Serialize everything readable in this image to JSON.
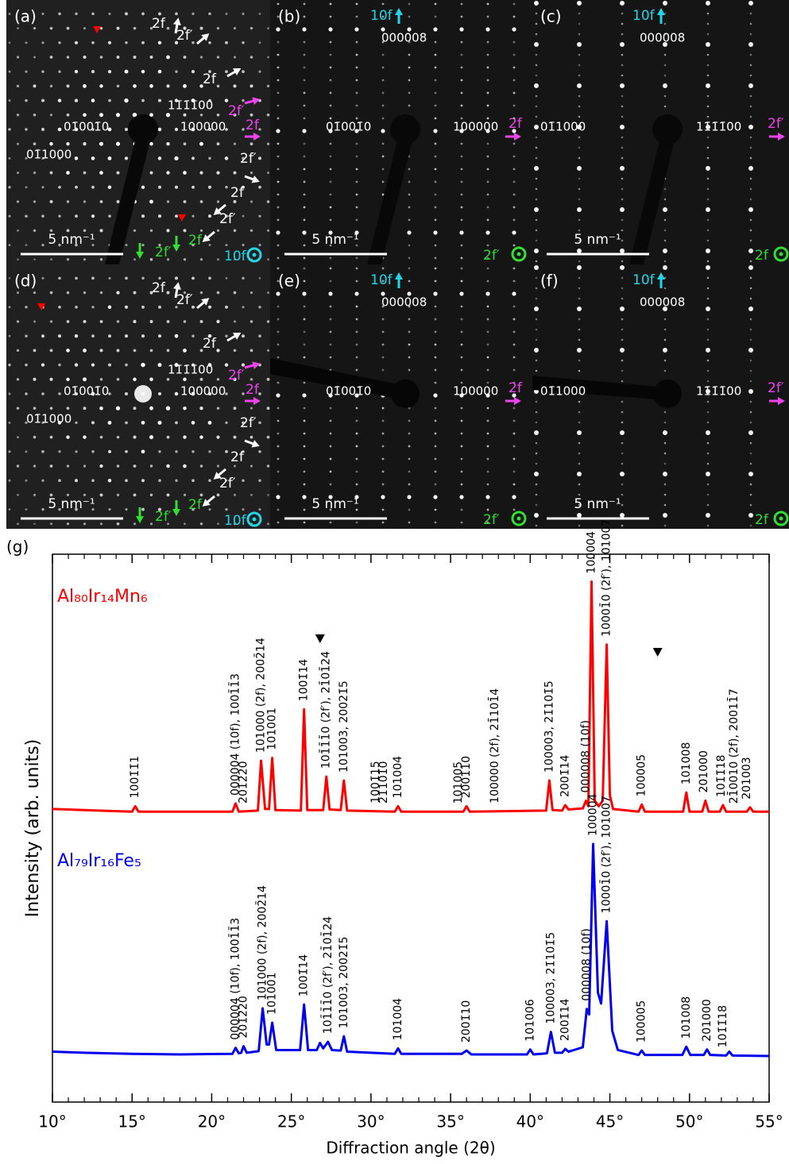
{
  "panels": [
    {
      "label": "(a)",
      "scale_bar": "5 nm⁻¹",
      "zone": {
        "text": "10f",
        "color": "#22d6e8"
      },
      "texts": [
        {
          "text": "2f",
          "color": "#ffffff"
        },
        {
          "text": "2f′",
          "color": "#ffffff"
        },
        {
          "text": "2f",
          "color": "#ffffff"
        },
        {
          "text": "2f′",
          "color": "#ee44ee"
        },
        {
          "text": "2f",
          "color": "#ee44ee"
        },
        {
          "text": "2f′",
          "color": "#ffffff"
        },
        {
          "text": "2f",
          "color": "#ffffff"
        },
        {
          "text": "2f′",
          "color": "#ffffff"
        },
        {
          "text": "2f′",
          "color": "#33dd33"
        },
        {
          "text": "2f",
          "color": "#33dd33"
        },
        {
          "text": "11̄1̄1̄00",
          "color": "#ffffff"
        },
        {
          "text": "01̄001̄0",
          "color": "#ffffff"
        },
        {
          "text": "100000",
          "color": "#ffffff"
        },
        {
          "text": "01̄1000",
          "color": "#ffffff"
        }
      ]
    },
    {
      "label": "(b)",
      "scale_bar": "5 nm⁻¹",
      "zone": {
        "text": "2f′",
        "color": "#33dd33"
      },
      "texts": [
        {
          "text": "10f",
          "color": "#22d6e8"
        },
        {
          "text": "000008",
          "color": "#ffffff"
        },
        {
          "text": "01̄001̄0",
          "color": "#ffffff"
        },
        {
          "text": "100000",
          "color": "#ffffff"
        },
        {
          "text": "2f",
          "color": "#ee44ee"
        }
      ]
    },
    {
      "label": "(c)",
      "scale_bar": "5 nm⁻¹",
      "zone": {
        "text": "2f",
        "color": "#33dd33"
      },
      "texts": [
        {
          "text": "10f",
          "color": "#22d6e8"
        },
        {
          "text": "000008",
          "color": "#ffffff"
        },
        {
          "text": "01̄1000",
          "color": "#ffffff"
        },
        {
          "text": "11̄1̄1̄00",
          "color": "#ffffff"
        },
        {
          "text": "2f′",
          "color": "#ee44ee"
        }
      ]
    },
    {
      "label": "(d)",
      "scale_bar": "5 nm⁻¹",
      "zone": {
        "text": "10f",
        "color": "#22d6e8"
      },
      "texts": [
        {
          "text": "2f",
          "color": "#ffffff"
        },
        {
          "text": "2f′",
          "color": "#ffffff"
        },
        {
          "text": "2f",
          "color": "#ffffff"
        },
        {
          "text": "2f′",
          "color": "#ee44ee"
        },
        {
          "text": "2f",
          "color": "#ee44ee"
        },
        {
          "text": "2f′",
          "color": "#ffffff"
        },
        {
          "text": "2f",
          "color": "#ffffff"
        },
        {
          "text": "2f′",
          "color": "#ffffff"
        },
        {
          "text": "2f′",
          "color": "#33dd33"
        },
        {
          "text": "2f",
          "color": "#33dd33"
        },
        {
          "text": "11̄1̄1̄00",
          "color": "#ffffff"
        },
        {
          "text": "01̄001̄0",
          "color": "#ffffff"
        },
        {
          "text": "100000",
          "color": "#ffffff"
        },
        {
          "text": "01̄1000",
          "color": "#ffffff"
        }
      ]
    },
    {
      "label": "(e)",
      "scale_bar": "5 nm⁻¹",
      "zone": {
        "text": "2f′",
        "color": "#33dd33"
      },
      "texts": [
        {
          "text": "10f",
          "color": "#22d6e8"
        },
        {
          "text": "000008",
          "color": "#ffffff"
        },
        {
          "text": "01̄001̄0",
          "color": "#ffffff"
        },
        {
          "text": "100000",
          "color": "#ffffff"
        },
        {
          "text": "2f",
          "color": "#ee44ee"
        }
      ]
    },
    {
      "label": "(f)",
      "scale_bar": "5 nm⁻¹",
      "zone": {
        "text": "2f",
        "color": "#33dd33"
      },
      "texts": [
        {
          "text": "10f",
          "color": "#22d6e8"
        },
        {
          "text": "000008",
          "color": "#ffffff"
        },
        {
          "text": "01̄1000",
          "color": "#ffffff"
        },
        {
          "text": "11̄1̄1̄00",
          "color": "#ffffff"
        },
        {
          "text": "2f′",
          "color": "#ee44ee"
        }
      ]
    }
  ],
  "chart_data": {
    "type": "line",
    "panel_label": "(g)",
    "xlabel": "Diffraction angle (2θ)",
    "ylabel": "Intensity (arb. units)",
    "xlim": [
      10,
      55
    ],
    "ylim": [
      0,
      100
    ],
    "xticks": [
      {
        "value": 10,
        "label": "10°"
      },
      {
        "value": 15,
        "label": "15°"
      },
      {
        "value": 20,
        "label": "20°"
      },
      {
        "value": 25,
        "label": "25°"
      },
      {
        "value": 30,
        "label": "30°"
      },
      {
        "value": 35,
        "label": "35°"
      },
      {
        "value": 40,
        "label": "40°"
      },
      {
        "value": 45,
        "label": "45°"
      },
      {
        "value": 50,
        "label": "50°"
      },
      {
        "value": 55,
        "label": "55°"
      }
    ],
    "xminorticks": [
      11,
      12,
      13,
      14,
      16,
      17,
      18,
      19,
      21,
      22,
      23,
      24,
      26,
      27,
      28,
      29,
      31,
      32,
      33,
      34,
      36,
      37,
      38,
      39,
      41,
      42,
      43,
      44,
      46,
      47,
      48,
      49,
      51,
      52,
      53,
      54
    ],
    "series": [
      {
        "name": "Al₈₀Ir₁₄Mn₆",
        "color": "#ff0000",
        "x": [
          10,
          12,
          15,
          15.2,
          15.4,
          18,
          21.3,
          21.5,
          21.7,
          22.9,
          23.1,
          23.35,
          23.6,
          23.8,
          24.0,
          25.6,
          25.8,
          26.0,
          27.0,
          27.2,
          27.4,
          28.1,
          28.3,
          28.5,
          31.5,
          31.7,
          31.9,
          35.8,
          36.0,
          36.2,
          41.0,
          41.2,
          41.4,
          42.0,
          42.2,
          42.4,
          43.3,
          43.5,
          43.65,
          43.85,
          44.05,
          44.3,
          44.55,
          44.8,
          45.0,
          45.2,
          46.8,
          47.0,
          47.2,
          49.6,
          49.8,
          50.0,
          50.8,
          51.0,
          51.2,
          51.9,
          52.1,
          52.3,
          53.6,
          53.8,
          54.0,
          55
        ],
        "values": [
          53.5,
          53.3,
          53,
          54,
          53,
          53,
          53,
          54.5,
          53,
          53.2,
          62.3,
          53.5,
          53.5,
          62.8,
          53.3,
          53.2,
          71.7,
          53.3,
          53.3,
          59.4,
          53.4,
          53.3,
          58.7,
          53.2,
          53,
          54,
          53,
          53,
          54,
          53,
          53.2,
          58.7,
          53.3,
          53.2,
          54.2,
          53.4,
          53.6,
          55,
          54,
          95,
          55,
          54,
          55,
          83.5,
          56,
          53.5,
          53,
          54.3,
          53,
          53,
          56.5,
          53,
          53,
          55,
          53,
          53,
          54.2,
          53,
          53,
          53.8,
          53,
          53
        ],
        "annotations": [
          {
            "text": "1001̄1̄1",
            "x": 15.2
          },
          {
            "text": "000004 (10f), 1001̄1̄3",
            "x": 21.5
          },
          {
            "text": "201̄2̄20",
            "x": 22.0
          },
          {
            "text": "101000 (2f), 2002̄14",
            "x": 23.1
          },
          {
            "text": "101001",
            "x": 23.8
          },
          {
            "text": "1001̄14",
            "x": 25.8
          },
          {
            "text": "101̄1̄1̄0 (2f′), 21̄01̄24",
            "x": 27.2
          },
          {
            "text": "101003, 20021̄5",
            "x": 28.3
          },
          {
            "text": "1001̄15",
            "x": 30.3
          },
          {
            "text": "21̄101̄0",
            "x": 30.8
          },
          {
            "text": "101004",
            "x": 31.7
          },
          {
            "text": "101005",
            "x": 35.5
          },
          {
            "text": "2001̄10",
            "x": 36.0
          },
          {
            "text": "100000 (2f), 21̄101̄4",
            "x": 37.8
          },
          {
            "text": "100003, 21̄101̄5",
            "x": 41.2
          },
          {
            "text": "2001̄14",
            "x": 42.2
          },
          {
            "text": "000008 (10f)",
            "x": 43.5
          },
          {
            "text": "100004",
            "x": 43.85
          },
          {
            "text": "10001̄0 (2f′), 101007",
            "x": 44.8
          },
          {
            "text": "100005",
            "x": 47.0
          },
          {
            "text": "101008",
            "x": 49.8
          },
          {
            "text": "201000",
            "x": 50.9
          },
          {
            "text": "101̄1̄18",
            "x": 52.0
          },
          {
            "text": "21̄0010 (2f), 20011̄7",
            "x": 52.8
          },
          {
            "text": "201003",
            "x": 53.6
          }
        ]
      },
      {
        "name": "Al₇₉Ir₁₆Fe₅",
        "color": "#0000ee",
        "x": [
          10,
          12,
          15,
          18,
          21.3,
          21.5,
          21.7,
          21.85,
          22.0,
          22.2,
          22.95,
          23.2,
          23.45,
          23.6,
          23.8,
          24.05,
          25.55,
          25.8,
          26.05,
          26.6,
          26.8,
          27.0,
          27.3,
          27.55,
          28.1,
          28.3,
          28.5,
          31.5,
          31.7,
          31.9,
          35.7,
          36.0,
          36.3,
          39.8,
          40.0,
          40.2,
          41.05,
          41.3,
          41.55,
          42.0,
          42.2,
          42.4,
          43.3,
          43.55,
          43.7,
          43.95,
          44.25,
          44.45,
          44.8,
          45.15,
          45.5,
          46.8,
          47.0,
          47.2,
          49.55,
          49.8,
          50.05,
          50.9,
          51.1,
          51.3,
          52.3,
          52.5,
          52.7,
          55
        ],
        "values": [
          9.2,
          9.0,
          8.8,
          8.7,
          8.8,
          9.9,
          8.9,
          9,
          10.2,
          9,
          9.3,
          17.1,
          10.5,
          10.5,
          14.5,
          9.5,
          9.5,
          17.8,
          9.5,
          9.5,
          10.8,
          9.8,
          11,
          9.5,
          9.4,
          12,
          9.2,
          8.8,
          9.8,
          8.8,
          8.8,
          9.4,
          8.7,
          8.7,
          9.6,
          8.7,
          8.9,
          12.8,
          9,
          9,
          9.7,
          9.2,
          10,
          17,
          16,
          47.1,
          20,
          18,
          33,
          13,
          9.5,
          8.6,
          9.4,
          8.6,
          8.6,
          10.1,
          8.6,
          8.6,
          9.6,
          8.6,
          8.5,
          9.2,
          8.5,
          8.4
        ],
        "annotations": [
          {
            "text": "000004 (10f), 1001̄1̄3",
            "x": 21.5
          },
          {
            "text": "201̄2̄20",
            "x": 22.0
          },
          {
            "text": "101000 (2f), 2002̄14",
            "x": 23.2
          },
          {
            "text": "101001",
            "x": 23.8
          },
          {
            "text": "1001̄14",
            "x": 25.8
          },
          {
            "text": "101̄1̄1̄0 (2f′), 21̄01̄24",
            "x": 27.3
          },
          {
            "text": "101003, 20021̄5",
            "x": 28.3
          },
          {
            "text": "101004",
            "x": 31.7
          },
          {
            "text": "2001̄10",
            "x": 36.0
          },
          {
            "text": "101006",
            "x": 40.0
          },
          {
            "text": "100003, 21̄101̄5",
            "x": 41.3
          },
          {
            "text": "2001̄14",
            "x": 42.2
          },
          {
            "text": "000008 (10f)",
            "x": 43.55
          },
          {
            "text": "100004",
            "x": 43.95
          },
          {
            "text": "10001̄0 (2f′), 101007",
            "x": 44.8
          },
          {
            "text": "100005",
            "x": 47.0
          },
          {
            "text": "101008",
            "x": 49.8
          },
          {
            "text": "201000",
            "x": 51.1
          },
          {
            "text": "101̄1̄18",
            "x": 52.1
          }
        ],
        "markers": [
          26.8,
          48.0
        ]
      }
    ]
  }
}
